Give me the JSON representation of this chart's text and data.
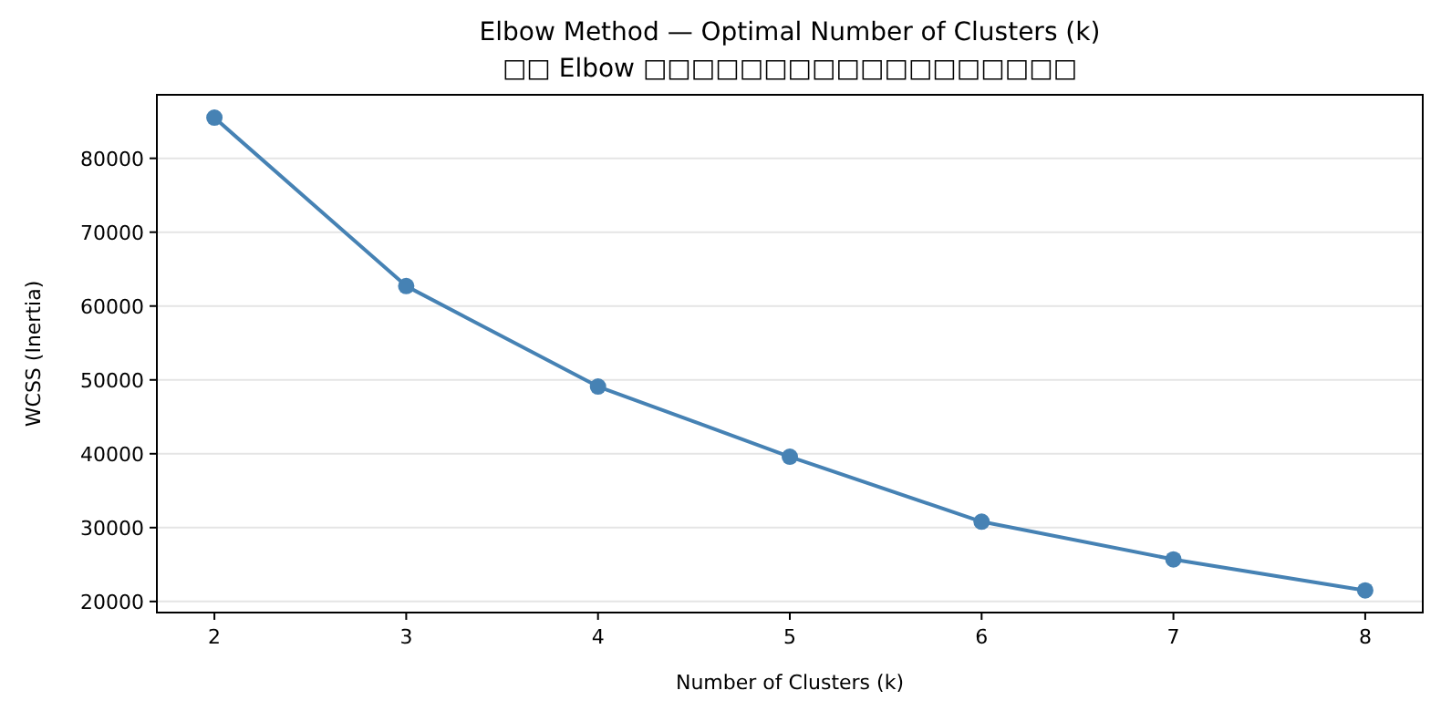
{
  "chart_data": {
    "type": "line",
    "title": "Elbow Method — Optimal Number of Clusters (k)",
    "subtitle": "□□ Elbow □□□□□□□□□□□□□□□□□□",
    "xlabel": "Number of Clusters (k)",
    "ylabel": "WCSS (Inertia)",
    "x": [
      2,
      3,
      4,
      5,
      6,
      7,
      8
    ],
    "series": [
      {
        "color": "#4682b4",
        "values": [
          85500,
          62700,
          49100,
          39600,
          30800,
          25700,
          21500
        ]
      }
    ],
    "xlim": [
      1.7,
      8.3
    ],
    "xticks": [
      2,
      3,
      4,
      5,
      6,
      7,
      8
    ],
    "ylim": [
      18500,
      88600
    ],
    "yticks": [
      20000,
      30000,
      40000,
      50000,
      60000,
      70000,
      80000
    ],
    "grid": "y",
    "marker": "circle",
    "line_style": "solid"
  }
}
